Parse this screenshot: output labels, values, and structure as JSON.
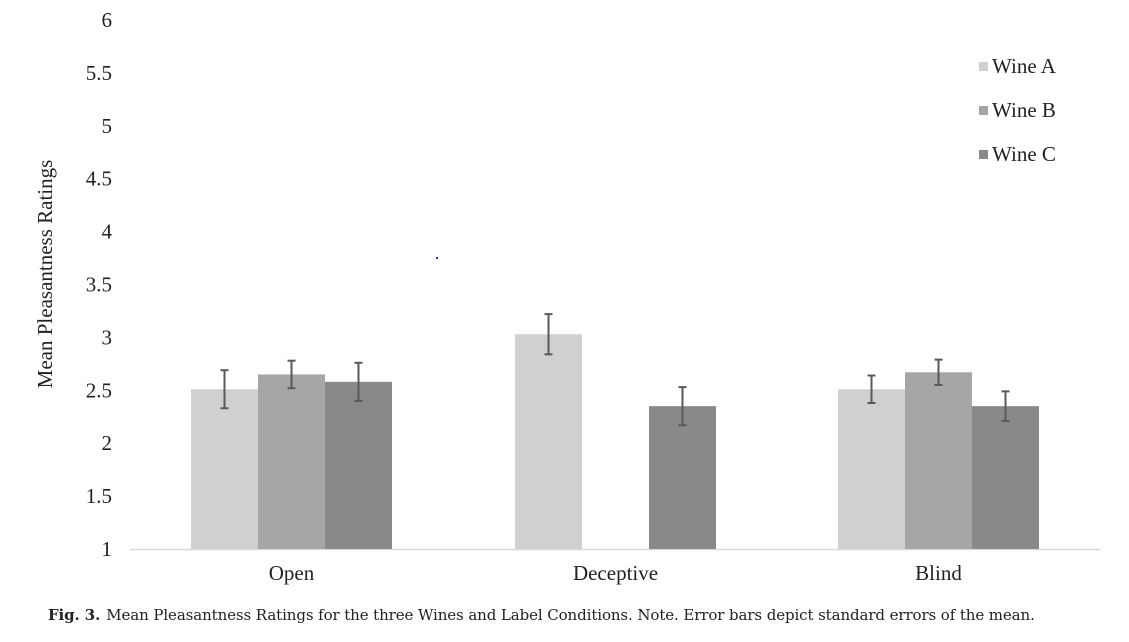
{
  "chart_data": {
    "type": "bar",
    "title": "",
    "xlabel": "",
    "ylabel": "Mean Pleasantness Ratings",
    "ylim": [
      1,
      6
    ],
    "yticks": [
      "1",
      "1.5",
      "2",
      "2.5",
      "3",
      "3.5",
      "4",
      "4.5",
      "5",
      "5.5",
      "6"
    ],
    "grid": false,
    "legend_position": "top-right",
    "categories": [
      "Open",
      "Deceptive",
      "Blind"
    ],
    "series": [
      {
        "name": "Wine A",
        "color": "#d0d0d0",
        "values": [
          2.51,
          3.03,
          2.51
        ],
        "errors": [
          0.18,
          0.19,
          0.13
        ]
      },
      {
        "name": "Wine B",
        "color": "#a6a6a6",
        "values": [
          2.65,
          null,
          2.67
        ],
        "errors": [
          0.13,
          null,
          0.12
        ]
      },
      {
        "name": "Wine C",
        "color": "#898989",
        "values": [
          2.58,
          2.35,
          2.35
        ],
        "errors": [
          0.18,
          0.18,
          0.14
        ]
      }
    ],
    "error_bar_color": "#595959",
    "annotations": [
      "Error bars depict standard errors of the mean."
    ]
  },
  "caption": {
    "label": "Fig. 3.",
    "text": "Mean Pleasantness Ratings for the three Wines and Label Conditions. Note. Error bars depict standard errors of the mean."
  }
}
